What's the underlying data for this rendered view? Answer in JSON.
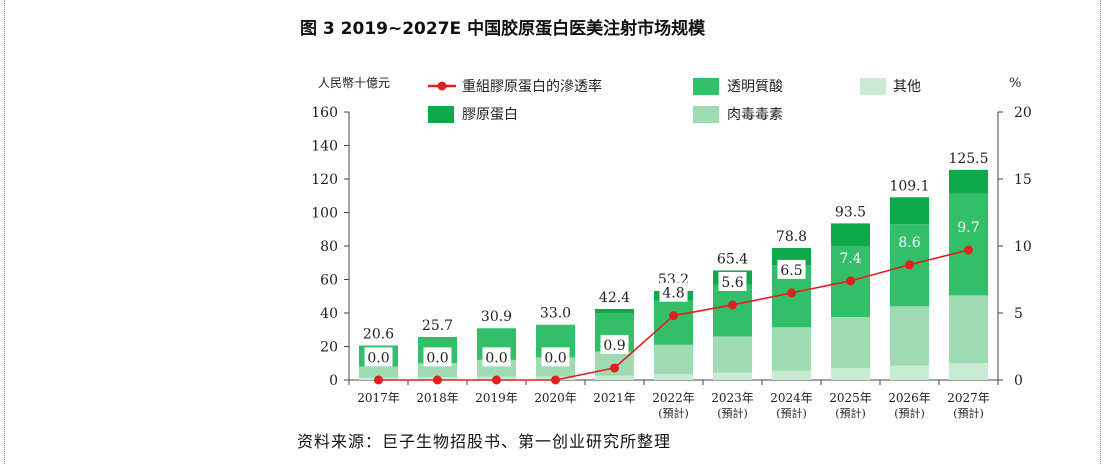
{
  "title": "图 3 2019~2027E 中国胶原蛋白医美注射市场规模",
  "source": "资料来源：巨子生物招股书、第一创业研究所整理",
  "chart_data": {
    "type": "bar",
    "stacked": true,
    "categories": [
      "2017年",
      "2018年",
      "2019年",
      "2020年",
      "2021年",
      "2022年",
      "2023年",
      "2024年",
      "2025年",
      "2026年",
      "2027年"
    ],
    "category_notes": [
      "",
      "",
      "",
      "",
      "",
      "(預計)",
      "(預計)",
      "(預計)",
      "(預計)",
      "(預計)",
      "(預計)"
    ],
    "ylabel": "人民幣十億元",
    "y2label": "%",
    "ylim": [
      0,
      160
    ],
    "yticks": [
      0,
      20,
      40,
      60,
      80,
      100,
      120,
      140,
      160
    ],
    "y2lim": [
      0,
      20
    ],
    "y2ticks": [
      0,
      5,
      10,
      15,
      20
    ],
    "totals": [
      20.6,
      25.7,
      30.9,
      33.0,
      42.4,
      53.2,
      65.4,
      78.8,
      93.5,
      109.1,
      125.5
    ],
    "totals_labels": [
      "20.6",
      "25.7",
      "30.9",
      "33.0",
      "42.4",
      "53.2",
      "65.4",
      "78.8",
      "93.5",
      "109.1",
      "125.5"
    ],
    "series": [
      {
        "name": "其他",
        "color": "#c9ebd3",
        "values": [
          1.5,
          1.8,
          2.0,
          2.0,
          2.5,
          3.5,
          4.5,
          5.5,
          7.0,
          8.5,
          10.0
        ]
      },
      {
        "name": "肉毒毒素",
        "color": "#9fdbb2",
        "values": [
          6.5,
          8.2,
          10.0,
          11.5,
          14.5,
          17.5,
          21.5,
          26.0,
          30.5,
          35.5,
          40.5
        ]
      },
      {
        "name": "透明質酸",
        "color": "#33bf6a",
        "values": [
          12.6,
          15.7,
          18.9,
          19.5,
          23.0,
          26.5,
          31.0,
          37.0,
          42.5,
          49.0,
          60.8
        ]
      },
      {
        "name": "膠原蛋白",
        "color": "#0ea94a",
        "values": [
          0.0,
          0.0,
          0.0,
          0.0,
          2.4,
          5.7,
          8.4,
          10.3,
          13.5,
          16.1,
          14.2
        ]
      }
    ],
    "line": {
      "name": "重組膠原蛋白的滲透率",
      "color": "#e02020",
      "axis": "right",
      "values": [
        0.0,
        0.0,
        0.0,
        0.0,
        0.9,
        4.8,
        5.6,
        6.5,
        7.4,
        8.6,
        9.7
      ],
      "labels": [
        "0.0",
        "0.0",
        "0.0",
        "0.0",
        "0.9",
        "4.8",
        "5.6",
        "6.5",
        "7.4",
        "8.6",
        "9.7"
      ]
    },
    "legend": {
      "placement": "top",
      "order": [
        "重組膠原蛋白的滲透率",
        "透明質酸",
        "其他",
        "膠原蛋白",
        "肉毒毒素"
      ]
    },
    "grid": false
  }
}
